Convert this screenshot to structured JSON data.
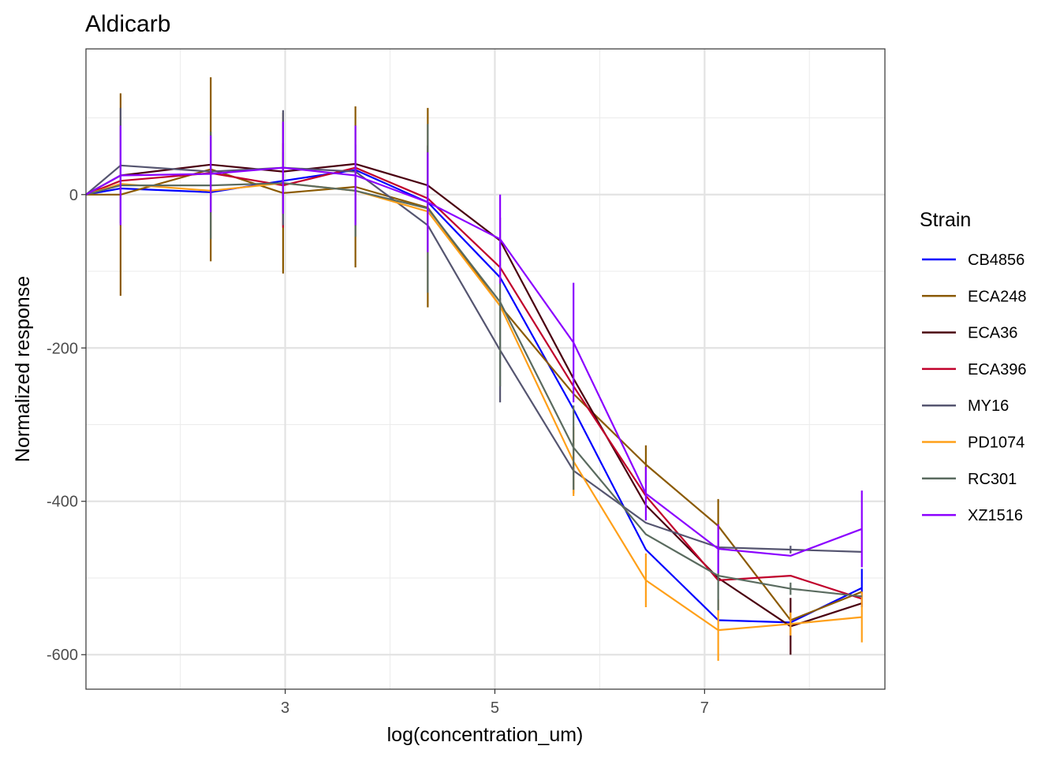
{
  "chart_data": {
    "type": "line",
    "title": "Aldicarb",
    "xlabel": "log(concentration_um)",
    "ylabel": "Normalized response",
    "xlim": [
      1.1,
      8.72
    ],
    "ylim": [
      -645,
      190
    ],
    "x_major_ticks": [
      3,
      5,
      7
    ],
    "x_minor_ticks": [
      2,
      4,
      6,
      8
    ],
    "y_major_ticks": [
      0,
      -200,
      -400,
      -600
    ],
    "y_minor_ticks": [
      100,
      -100,
      -300,
      -500
    ],
    "x_tick_labels": [
      "3",
      "5",
      "7"
    ],
    "y_tick_labels": [
      "0",
      "-200",
      "-400",
      "-600"
    ],
    "grid": true,
    "legend": {
      "title": "Strain",
      "position": "right"
    },
    "x": [
      1.1,
      1.43,
      2.29,
      2.98,
      3.67,
      4.36,
      5.05,
      5.75,
      6.44,
      7.13,
      7.82,
      8.5
    ],
    "series": [
      {
        "name": "CB4856",
        "color": "#0000ff",
        "values": [
          0,
          8,
          3,
          18,
          32,
          -10,
          -108,
          -280,
          -463,
          -555,
          -558,
          -513
        ],
        "errors": [
          0,
          0,
          0,
          0,
          0,
          0,
          0,
          0,
          0,
          0,
          0,
          25
        ]
      },
      {
        "name": "ECA248",
        "color": "#8b5a00",
        "values": [
          0,
          0,
          33,
          2,
          10,
          -17,
          -145,
          -260,
          -352,
          -432,
          -555,
          -518
        ],
        "errors": [
          0,
          132,
          120,
          105,
          105,
          130,
          0,
          0,
          25,
          35,
          0,
          0
        ]
      },
      {
        "name": "ECA36",
        "color": "#4a0010",
        "values": [
          0,
          25,
          39,
          30,
          40,
          12,
          -60,
          -240,
          -405,
          -500,
          -563,
          -533
        ],
        "errors": [
          0,
          0,
          0,
          0,
          0,
          52,
          0,
          0,
          0,
          0,
          37,
          0
        ]
      },
      {
        "name": "ECA396",
        "color": "#c0002b",
        "values": [
          0,
          18,
          28,
          12,
          35,
          -5,
          -95,
          -250,
          -393,
          -503,
          -497,
          -527
        ],
        "errors": [
          0,
          0,
          0,
          55,
          0,
          0,
          0,
          0,
          0,
          0,
          0,
          0
        ]
      },
      {
        "name": "MY16",
        "color": "#555570",
        "values": [
          0,
          38,
          30,
          35,
          30,
          -40,
          -203,
          -360,
          -428,
          -460,
          -463,
          -466
        ],
        "errors": [
          0,
          75,
          0,
          75,
          0,
          0,
          68,
          30,
          0,
          0,
          5,
          0
        ]
      },
      {
        "name": "PD1074",
        "color": "#ffa019",
        "values": [
          0,
          14,
          5,
          15,
          5,
          -22,
          -145,
          -348,
          -503,
          -568,
          -560,
          -551
        ],
        "errors": [
          0,
          0,
          0,
          0,
          0,
          0,
          0,
          45,
          35,
          40,
          15,
          33
        ]
      },
      {
        "name": "RC301",
        "color": "#5a6b5f",
        "values": [
          0,
          12,
          12,
          15,
          5,
          -18,
          -140,
          -330,
          -443,
          -497,
          -514,
          -524
        ],
        "errors": [
          0,
          0,
          70,
          40,
          60,
          110,
          110,
          55,
          0,
          45,
          8,
          0
        ]
      },
      {
        "name": "XZ1516",
        "color": "#8b00ff",
        "values": [
          0,
          25,
          27,
          35,
          25,
          -10,
          -58,
          -193,
          -390,
          -462,
          -471,
          -436
        ],
        "errors": [
          0,
          65,
          50,
          60,
          65,
          65,
          58,
          78,
          35,
          32,
          0,
          50
        ]
      }
    ]
  }
}
